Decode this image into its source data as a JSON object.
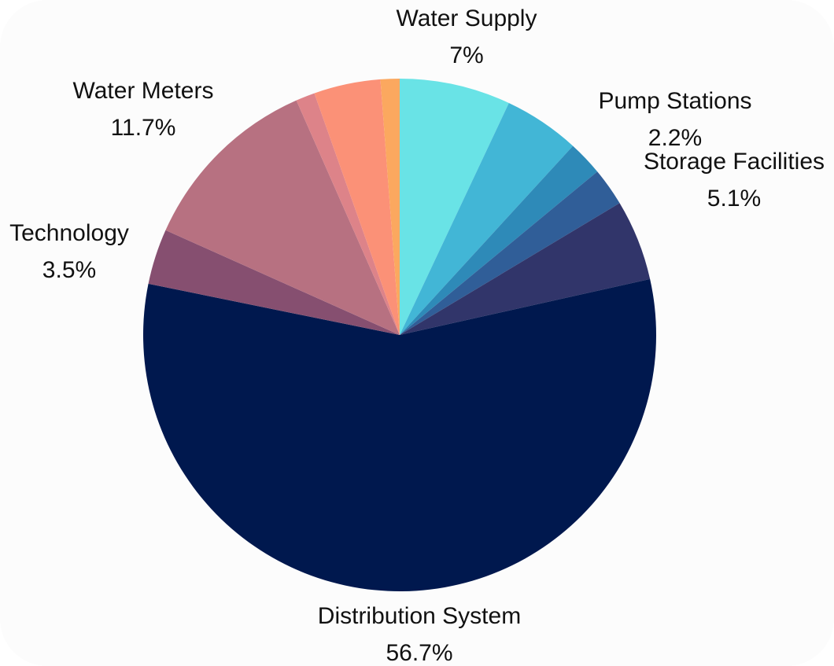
{
  "chart_data": {
    "type": "pie",
    "title": "",
    "background_color": "#fcfcfc",
    "start_angle_deg": 0,
    "direction": "clockwise",
    "slices": [
      {
        "name": "Water Supply",
        "value": 7.0,
        "color": "#69e3e6",
        "label_shown": true,
        "value_label": "7%"
      },
      {
        "name": "",
        "value": 4.8,
        "color": "#42b6d6",
        "label_shown": false,
        "value_label": ""
      },
      {
        "name": "Pump Stations",
        "value": 2.2,
        "color": "#2e8ab8",
        "label_shown": true,
        "value_label": "2.2%"
      },
      {
        "name": "",
        "value": 2.4,
        "color": "#305e98",
        "label_shown": false,
        "value_label": ""
      },
      {
        "name": "Storage Facilities",
        "value": 5.1,
        "color": "#31356a",
        "label_shown": true,
        "value_label": "5.1%"
      },
      {
        "name": "Distribution System",
        "value": 56.7,
        "color": "#00184e",
        "label_shown": true,
        "value_label": "56.7%"
      },
      {
        "name": "Technology",
        "value": 3.5,
        "color": "#864f70",
        "label_shown": true,
        "value_label": "3.5%"
      },
      {
        "name": "Water Meters",
        "value": 11.7,
        "color": "#b77181",
        "label_shown": true,
        "value_label": "11.7%"
      },
      {
        "name": "",
        "value": 1.2,
        "color": "#dd8389",
        "label_shown": false,
        "value_label": ""
      },
      {
        "name": "",
        "value": 4.2,
        "color": "#fb9177",
        "label_shown": false,
        "value_label": ""
      },
      {
        "name": "",
        "value": 1.2,
        "color": "#fba85f",
        "label_shown": false,
        "value_label": ""
      }
    ]
  }
}
